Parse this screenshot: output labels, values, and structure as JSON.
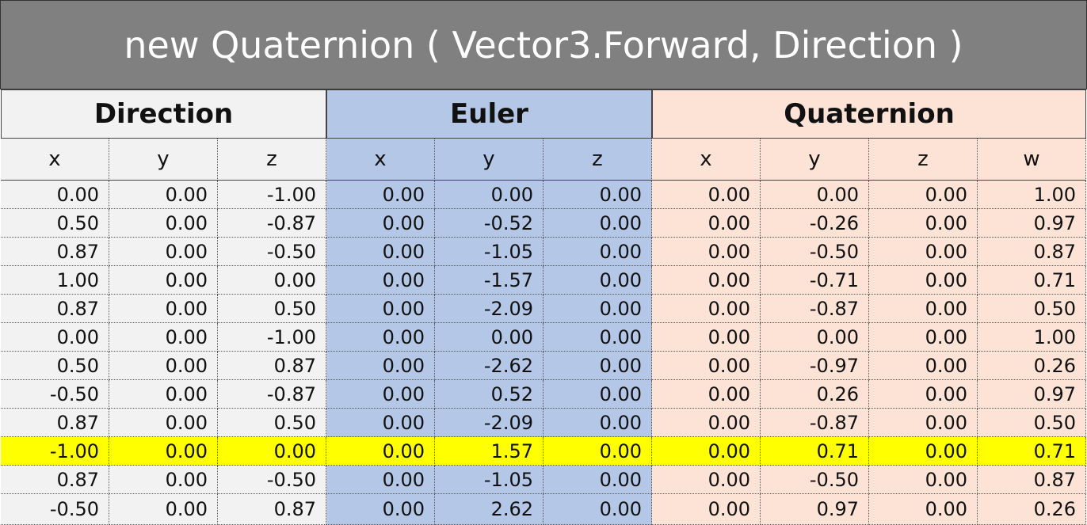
{
  "title": "new Quaternion ( Vector3.Forward, Direction )",
  "groups": [
    {
      "label": "Direction",
      "columns": [
        "x",
        "y",
        "z"
      ]
    },
    {
      "label": "Euler",
      "columns": [
        "x",
        "y",
        "z"
      ]
    },
    {
      "label": "Quaternion",
      "columns": [
        "x",
        "y",
        "z",
        "w"
      ]
    }
  ],
  "rows": [
    [
      "0.00",
      "0.00",
      "-1.00",
      "0.00",
      "0.00",
      "0.00",
      "0.00",
      "0.00",
      "0.00",
      "1.00"
    ],
    [
      "0.50",
      "0.00",
      "-0.87",
      "0.00",
      "-0.52",
      "0.00",
      "0.00",
      "-0.26",
      "0.00",
      "0.97"
    ],
    [
      "0.87",
      "0.00",
      "-0.50",
      "0.00",
      "-1.05",
      "0.00",
      "0.00",
      "-0.50",
      "0.00",
      "0.87"
    ],
    [
      "1.00",
      "0.00",
      "0.00",
      "0.00",
      "-1.57",
      "0.00",
      "0.00",
      "-0.71",
      "0.00",
      "0.71"
    ],
    [
      "0.87",
      "0.00",
      "0.50",
      "0.00",
      "-2.09",
      "0.00",
      "0.00",
      "-0.87",
      "0.00",
      "0.50"
    ],
    [
      "0.00",
      "0.00",
      "-1.00",
      "0.00",
      "0.00",
      "0.00",
      "0.00",
      "0.00",
      "0.00",
      "1.00"
    ],
    [
      "0.50",
      "0.00",
      "0.87",
      "0.00",
      "-2.62",
      "0.00",
      "0.00",
      "-0.97",
      "0.00",
      "0.26"
    ],
    [
      "-0.50",
      "0.00",
      "-0.87",
      "0.00",
      "0.52",
      "0.00",
      "0.00",
      "0.26",
      "0.00",
      "0.97"
    ],
    [
      "0.87",
      "0.00",
      "0.50",
      "0.00",
      "-2.09",
      "0.00",
      "0.00",
      "-0.87",
      "0.00",
      "0.50"
    ],
    [
      "-1.00",
      "0.00",
      "0.00",
      "0.00",
      "1.57",
      "0.00",
      "0.00",
      "0.71",
      "0.00",
      "0.71"
    ],
    [
      "0.87",
      "0.00",
      "-0.50",
      "0.00",
      "-1.05",
      "0.00",
      "0.00",
      "-0.50",
      "0.00",
      "0.87"
    ],
    [
      "-0.50",
      "0.00",
      "0.87",
      "0.00",
      "2.62",
      "0.00",
      "0.00",
      "0.97",
      "0.00",
      "0.26"
    ]
  ]
}
